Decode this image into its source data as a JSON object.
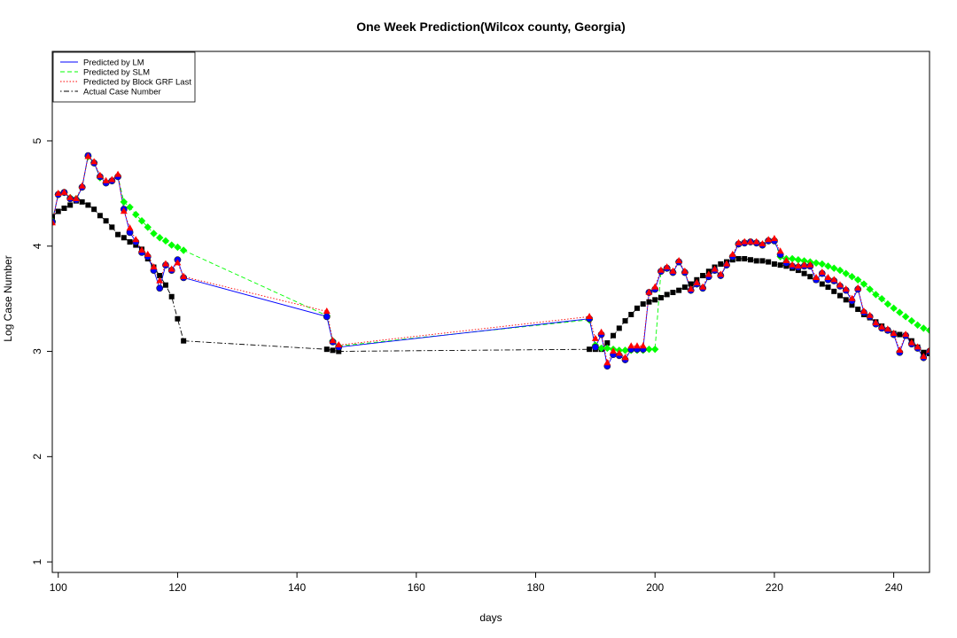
{
  "chart_data": {
    "type": "line",
    "title": "One Week Prediction(Wilcox county, Georgia)",
    "xlabel": "days",
    "ylabel": "Log Case Number",
    "xlim": [
      99,
      246
    ],
    "ylim": [
      0.9,
      5.85
    ],
    "x_ticks": [
      100,
      120,
      140,
      160,
      180,
      200,
      220,
      240
    ],
    "y_ticks": [
      1,
      2,
      3,
      4,
      5
    ],
    "grid": false,
    "legend_position": "top-left",
    "series": [
      {
        "name": "Predicted by LM",
        "color": "#0000ff",
        "line_style": "solid",
        "marker": "circle",
        "x": [
          99,
          100,
          101,
          102,
          103,
          104,
          105,
          106,
          107,
          108,
          109,
          110,
          111,
          112,
          113,
          114,
          115,
          116,
          117,
          118,
          119,
          120,
          121,
          145,
          146,
          147,
          189,
          190,
          191,
          192,
          193,
          194,
          195,
          196,
          197,
          198,
          199,
          200,
          201,
          202,
          203,
          204,
          205,
          206,
          207,
          208,
          209,
          210,
          211,
          212,
          213,
          214,
          215,
          216,
          217,
          218,
          219,
          220,
          221,
          222,
          223,
          224,
          225,
          226,
          227,
          228,
          229,
          230,
          231,
          232,
          233,
          234,
          235,
          236,
          237,
          238,
          239,
          240,
          241,
          242,
          243,
          244,
          245,
          246
        ],
        "y": [
          4.23,
          4.49,
          4.51,
          4.45,
          4.44,
          4.56,
          4.86,
          4.79,
          4.66,
          4.6,
          4.62,
          4.66,
          4.35,
          4.13,
          4.04,
          3.94,
          3.9,
          3.77,
          3.6,
          3.82,
          3.77,
          3.87,
          3.7,
          3.33,
          3.09,
          3.04,
          3.31,
          3.04,
          3.16,
          2.86,
          2.97,
          2.96,
          2.92,
          3.02,
          3.02,
          3.02,
          3.56,
          3.59,
          3.76,
          3.79,
          3.75,
          3.85,
          3.75,
          3.58,
          3.64,
          3.6,
          3.71,
          3.77,
          3.72,
          3.82,
          3.9,
          4.02,
          4.03,
          4.04,
          4.03,
          4.01,
          4.05,
          4.05,
          3.92,
          3.84,
          3.81,
          3.8,
          3.81,
          3.81,
          3.68,
          3.74,
          3.68,
          3.67,
          3.62,
          3.58,
          3.48,
          3.59,
          3.37,
          3.33,
          3.26,
          3.22,
          3.2,
          3.16,
          2.99,
          3.15,
          3.07,
          3.03,
          2.94,
          3.0
        ]
      },
      {
        "name": "Predicted by SLM",
        "color": "#00ff00",
        "line_style": "dashed",
        "marker": "diamond",
        "x": [
          99,
          100,
          101,
          102,
          103,
          104,
          105,
          106,
          107,
          108,
          109,
          110,
          111,
          112,
          113,
          114,
          115,
          116,
          117,
          118,
          119,
          120,
          121,
          145,
          146,
          147,
          189,
          190,
          191,
          192,
          193,
          194,
          195,
          196,
          197,
          198,
          199,
          200,
          201,
          202,
          203,
          204,
          205,
          206,
          207,
          208,
          209,
          210,
          211,
          212,
          213,
          214,
          215,
          216,
          217,
          218,
          219,
          220,
          221,
          222,
          223,
          224,
          225,
          226,
          227,
          228,
          229,
          230,
          231,
          232,
          233,
          234,
          235,
          236,
          237,
          238,
          239,
          240,
          241,
          242,
          243,
          244,
          245,
          246
        ],
        "y": [
          4.24,
          4.49,
          4.51,
          4.46,
          4.45,
          4.56,
          4.85,
          4.79,
          4.65,
          4.6,
          4.62,
          4.66,
          4.42,
          4.37,
          4.3,
          4.24,
          4.18,
          4.12,
          4.08,
          4.05,
          4.01,
          3.99,
          3.96,
          3.34,
          3.1,
          3.05,
          3.3,
          3.06,
          3.03,
          3.03,
          3.02,
          3.01,
          3.01,
          3.01,
          3.01,
          3.01,
          3.02,
          3.02,
          3.76,
          3.79,
          3.75,
          3.85,
          3.75,
          3.58,
          3.64,
          3.6,
          3.71,
          3.77,
          3.72,
          3.82,
          3.9,
          4.02,
          4.03,
          4.04,
          4.03,
          4.01,
          4.05,
          4.05,
          3.9,
          3.88,
          3.88,
          3.87,
          3.86,
          3.85,
          3.84,
          3.83,
          3.81,
          3.79,
          3.77,
          3.74,
          3.71,
          3.68,
          3.64,
          3.59,
          3.54,
          3.5,
          3.45,
          3.41,
          3.37,
          3.33,
          3.29,
          3.25,
          3.22,
          3.2
        ]
      },
      {
        "name": "Predicted by Block GRF Last",
        "color": "#ff0000",
        "line_style": "dotted",
        "marker": "triangle",
        "x": [
          99,
          100,
          101,
          102,
          103,
          104,
          105,
          106,
          107,
          108,
          109,
          110,
          111,
          112,
          113,
          114,
          115,
          116,
          117,
          118,
          119,
          120,
          121,
          145,
          146,
          147,
          189,
          190,
          191,
          192,
          193,
          194,
          195,
          196,
          197,
          198,
          199,
          200,
          201,
          202,
          203,
          204,
          205,
          206,
          207,
          208,
          209,
          210,
          211,
          212,
          213,
          214,
          215,
          216,
          217,
          218,
          219,
          220,
          221,
          222,
          223,
          224,
          225,
          226,
          227,
          228,
          229,
          230,
          231,
          232,
          233,
          234,
          235,
          236,
          237,
          238,
          239,
          240,
          241,
          242,
          243,
          244,
          245,
          246
        ],
        "y": [
          4.22,
          4.5,
          4.51,
          4.46,
          4.45,
          4.57,
          4.85,
          4.8,
          4.67,
          4.62,
          4.63,
          4.68,
          4.33,
          4.17,
          4.06,
          3.96,
          3.92,
          3.8,
          3.67,
          3.83,
          3.78,
          3.84,
          3.71,
          3.38,
          3.1,
          3.06,
          3.33,
          3.12,
          3.18,
          2.89,
          3.0,
          2.98,
          2.94,
          3.05,
          3.05,
          3.05,
          3.56,
          3.61,
          3.77,
          3.8,
          3.76,
          3.86,
          3.76,
          3.59,
          3.65,
          3.61,
          3.73,
          3.78,
          3.73,
          3.83,
          3.92,
          4.03,
          4.04,
          4.04,
          4.04,
          4.02,
          4.06,
          4.07,
          3.95,
          3.86,
          3.82,
          3.81,
          3.82,
          3.82,
          3.7,
          3.75,
          3.7,
          3.68,
          3.63,
          3.59,
          3.5,
          3.6,
          3.38,
          3.34,
          3.27,
          3.23,
          3.21,
          3.17,
          3.01,
          3.16,
          3.08,
          3.04,
          2.95,
          3.01
        ]
      },
      {
        "name": "Actual Case Number",
        "color": "#000000",
        "line_style": "dotdash",
        "marker": "square",
        "x": [
          99,
          100,
          101,
          102,
          103,
          104,
          105,
          106,
          107,
          108,
          109,
          110,
          111,
          112,
          113,
          114,
          115,
          116,
          117,
          118,
          119,
          120,
          121,
          145,
          146,
          147,
          189,
          190,
          191,
          192,
          193,
          194,
          195,
          196,
          197,
          198,
          199,
          200,
          201,
          202,
          203,
          204,
          205,
          206,
          207,
          208,
          209,
          210,
          211,
          212,
          213,
          214,
          215,
          216,
          217,
          218,
          219,
          220,
          221,
          222,
          223,
          224,
          225,
          226,
          227,
          228,
          229,
          230,
          231,
          232,
          233,
          234,
          235,
          236,
          237,
          238,
          239,
          240,
          241,
          242,
          243,
          244,
          245,
          246
        ],
        "y": [
          4.28,
          4.33,
          4.36,
          4.39,
          4.43,
          4.42,
          4.39,
          4.35,
          4.29,
          4.24,
          4.18,
          4.11,
          4.08,
          4.04,
          4.01,
          3.97,
          3.88,
          3.8,
          3.72,
          3.63,
          3.52,
          3.31,
          3.1,
          3.02,
          3.01,
          3.0,
          3.02,
          3.02,
          3.02,
          3.08,
          3.15,
          3.22,
          3.29,
          3.35,
          3.41,
          3.45,
          3.47,
          3.49,
          3.51,
          3.54,
          3.56,
          3.58,
          3.61,
          3.64,
          3.68,
          3.72,
          3.76,
          3.8,
          3.83,
          3.85,
          3.87,
          3.88,
          3.88,
          3.87,
          3.86,
          3.86,
          3.85,
          3.83,
          3.82,
          3.81,
          3.79,
          3.77,
          3.74,
          3.71,
          3.68,
          3.64,
          3.61,
          3.57,
          3.53,
          3.49,
          3.44,
          3.4,
          3.35,
          3.32,
          3.28,
          3.24,
          3.2,
          3.17,
          3.16,
          3.15,
          3.1,
          3.04,
          2.99,
          2.98
        ]
      }
    ]
  }
}
